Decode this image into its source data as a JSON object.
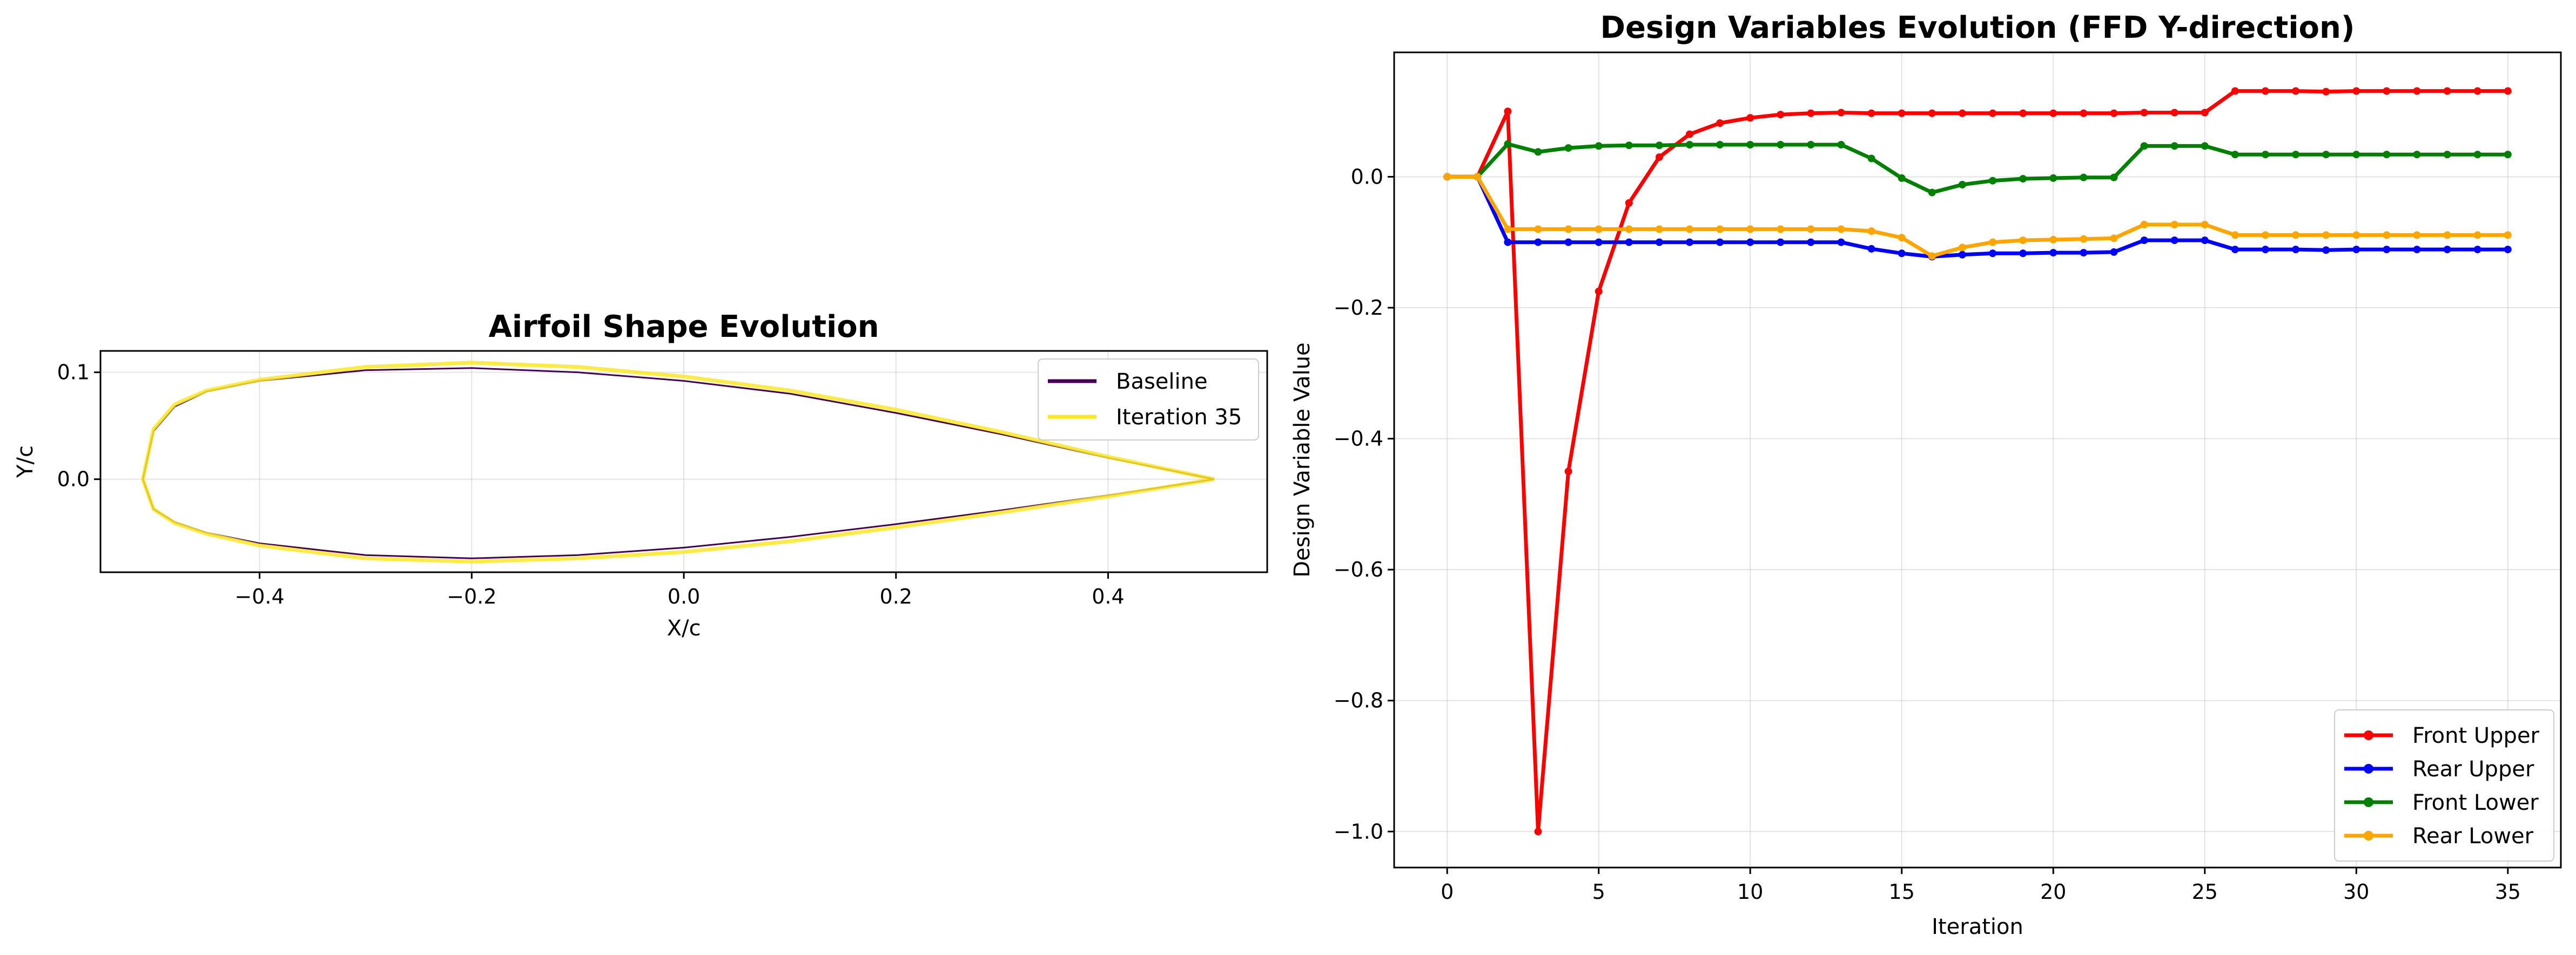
{
  "chart_data": [
    {
      "type": "line",
      "title": "Airfoil Shape Evolution",
      "xlabel": "X/c",
      "ylabel": "Y/c",
      "xlim": [
        -0.55,
        0.55
      ],
      "ylim": [
        -0.087,
        0.12
      ],
      "xticks": [
        -0.4,
        -0.2,
        0.0,
        0.2,
        0.4
      ],
      "xtick_labels": [
        "−0.4",
        "−0.2",
        "0.0",
        "0.2",
        "0.4"
      ],
      "yticks": [
        0.0,
        0.1
      ],
      "ytick_labels": [
        "0.0",
        "0.1"
      ],
      "grid": true,
      "legend_position": "upper-right",
      "series": [
        {
          "name": "Baseline",
          "color": "#440154",
          "x": [
            0.5,
            0.4,
            0.3,
            0.2,
            0.1,
            0.0,
            -0.1,
            -0.2,
            -0.3,
            -0.4,
            -0.45,
            -0.48,
            -0.5,
            -0.51,
            -0.5,
            -0.48,
            -0.45,
            -0.4,
            -0.3,
            -0.2,
            -0.1,
            0.0,
            0.1,
            0.2,
            0.3,
            0.4,
            0.5
          ],
          "y": [
            0.0,
            0.02,
            0.042,
            0.062,
            0.08,
            0.092,
            0.1,
            0.104,
            0.102,
            0.092,
            0.082,
            0.068,
            0.045,
            0.0,
            -0.028,
            -0.04,
            -0.05,
            -0.06,
            -0.071,
            -0.074,
            -0.071,
            -0.064,
            -0.054,
            -0.042,
            -0.029,
            -0.015,
            0.0
          ]
        },
        {
          "name": "Iteration 35",
          "color": "#FDE725",
          "x": [
            0.5,
            0.4,
            0.3,
            0.2,
            0.1,
            0.0,
            -0.1,
            -0.2,
            -0.3,
            -0.4,
            -0.45,
            -0.48,
            -0.5,
            -0.51,
            -0.5,
            -0.48,
            -0.45,
            -0.4,
            -0.3,
            -0.2,
            -0.1,
            0.0,
            0.1,
            0.2,
            0.3,
            0.4,
            0.5
          ],
          "y": [
            0.0,
            0.021,
            0.044,
            0.065,
            0.083,
            0.096,
            0.105,
            0.109,
            0.105,
            0.093,
            0.083,
            0.07,
            0.047,
            0.0,
            -0.028,
            -0.041,
            -0.051,
            -0.062,
            -0.074,
            -0.077,
            -0.074,
            -0.068,
            -0.058,
            -0.045,
            -0.031,
            -0.016,
            0.0
          ]
        }
      ]
    },
    {
      "type": "line",
      "title": "Design Variables Evolution (FFD Y-direction)",
      "xlabel": "Iteration",
      "ylabel": "Design Variable Value",
      "xlim": [
        -1.75,
        36.75
      ],
      "ylim": [
        -1.055,
        0.19
      ],
      "xticks": [
        0,
        5,
        10,
        15,
        20,
        25,
        30,
        35
      ],
      "xtick_labels": [
        "0",
        "5",
        "10",
        "15",
        "20",
        "25",
        "30",
        "35"
      ],
      "yticks": [
        -1.0,
        -0.8,
        -0.6,
        -0.4,
        -0.2,
        0.0
      ],
      "ytick_labels": [
        "−1.0",
        "−0.8",
        "−0.6",
        "−0.4",
        "−0.2",
        "0.0"
      ],
      "grid": true,
      "legend_position": "lower-right",
      "x": [
        0,
        1,
        2,
        3,
        4,
        5,
        6,
        7,
        8,
        9,
        10,
        11,
        12,
        13,
        14,
        15,
        16,
        17,
        18,
        19,
        20,
        21,
        22,
        23,
        24,
        25,
        26,
        27,
        28,
        29,
        30,
        31,
        32,
        33,
        34,
        35
      ],
      "series": [
        {
          "name": "Front Upper",
          "color": "#FF0000",
          "values": [
            0.0,
            0.0,
            0.1,
            -1.0,
            -0.45,
            -0.175,
            -0.04,
            0.03,
            0.065,
            0.082,
            0.09,
            0.095,
            0.097,
            0.098,
            0.097,
            0.097,
            0.097,
            0.097,
            0.097,
            0.097,
            0.097,
            0.097,
            0.097,
            0.098,
            0.098,
            0.098,
            0.131,
            0.131,
            0.131,
            0.13,
            0.131,
            0.131,
            0.131,
            0.131,
            0.131,
            0.131
          ]
        },
        {
          "name": "Rear Upper",
          "color": "#0000FF",
          "values": [
            0.0,
            0.0,
            -0.1,
            -0.1,
            -0.1,
            -0.1,
            -0.1,
            -0.1,
            -0.1,
            -0.1,
            -0.1,
            -0.1,
            -0.1,
            -0.1,
            -0.11,
            -0.117,
            -0.122,
            -0.119,
            -0.117,
            -0.117,
            -0.116,
            -0.116,
            -0.115,
            -0.097,
            -0.097,
            -0.097,
            -0.111,
            -0.111,
            -0.111,
            -0.112,
            -0.111,
            -0.111,
            -0.111,
            -0.111,
            -0.111,
            -0.111
          ]
        },
        {
          "name": "Front Lower",
          "color": "#008000",
          "values": [
            0.0,
            0.0,
            0.05,
            0.038,
            0.044,
            0.047,
            0.048,
            0.048,
            0.049,
            0.049,
            0.049,
            0.049,
            0.049,
            0.049,
            0.028,
            -0.002,
            -0.024,
            -0.012,
            -0.006,
            -0.003,
            -0.002,
            -0.001,
            -0.001,
            0.047,
            0.047,
            0.047,
            0.034,
            0.034,
            0.034,
            0.034,
            0.034,
            0.034,
            0.034,
            0.034,
            0.034,
            0.034
          ]
        },
        {
          "name": "Rear Lower",
          "color": "#FFA500",
          "values": [
            0.0,
            0.0,
            -0.08,
            -0.08,
            -0.08,
            -0.08,
            -0.08,
            -0.08,
            -0.08,
            -0.08,
            -0.08,
            -0.08,
            -0.08,
            -0.08,
            -0.083,
            -0.093,
            -0.121,
            -0.108,
            -0.1,
            -0.097,
            -0.096,
            -0.095,
            -0.094,
            -0.073,
            -0.073,
            -0.073,
            -0.089,
            -0.089,
            -0.089,
            -0.089,
            -0.089,
            -0.089,
            -0.089,
            -0.089,
            -0.089,
            -0.089
          ]
        }
      ]
    }
  ]
}
